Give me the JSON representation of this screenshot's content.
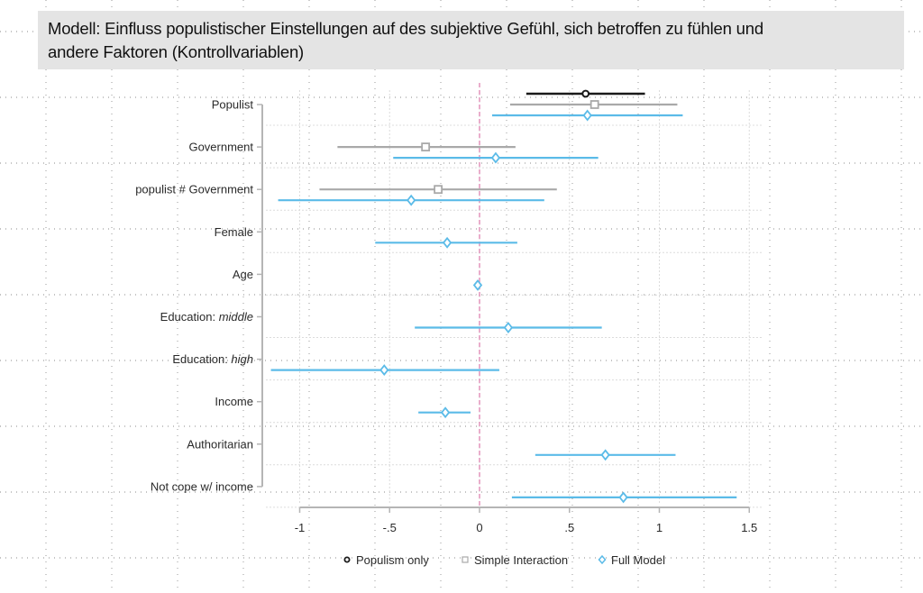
{
  "title": {
    "line1": "Modell: Einfluss populistischer Einstellungen auf des subjektive Gefühl, sich betroffen zu fühlen und",
    "line2": "andere Faktoren (Kontrollvariablen)"
  },
  "colors": {
    "populism_only": "#1a1a1a",
    "simple_interaction": "#a9a9a9",
    "full_model": "#5bbbe8",
    "zero_line": "#e59ac0",
    "axis": "#b5b5b5",
    "title_bg": "#e4e4e4"
  },
  "chart_data": {
    "type": "scatter",
    "subtype": "coefficient-plot",
    "title": "",
    "xlabel": "",
    "ylabel": "",
    "xlim": [
      -1.1,
      1.5
    ],
    "xticks": [
      -1,
      -0.5,
      0,
      0.5,
      1,
      1.5
    ],
    "xtick_labels": [
      "-1",
      "-.5",
      "0",
      ".5",
      "1",
      "1.5"
    ],
    "reference_line": 0,
    "grid": true,
    "legend_position": "bottom",
    "categories": [
      {
        "label": "Populist",
        "italic_part": ""
      },
      {
        "label": "Government",
        "italic_part": ""
      },
      {
        "label": "populist # Government",
        "italic_part": ""
      },
      {
        "label": "Female",
        "italic_part": ""
      },
      {
        "label": "Age",
        "italic_part": ""
      },
      {
        "label": "Education: ",
        "italic_part": "middle"
      },
      {
        "label": "Education: ",
        "italic_part": "high"
      },
      {
        "label": "Income",
        "italic_part": ""
      },
      {
        "label": "Authoritarian",
        "italic_part": ""
      },
      {
        "label": "Not cope w/ income",
        "italic_part": ""
      }
    ],
    "series": [
      {
        "name": "Populism only",
        "marker": "circle",
        "color_key": "populism_only",
        "points": [
          {
            "category": "Populist",
            "estimate": 0.59,
            "ci_low": 0.26,
            "ci_high": 0.92
          }
        ]
      },
      {
        "name": "Simple Interaction",
        "marker": "square",
        "color_key": "simple_interaction",
        "points": [
          {
            "category": "Populist",
            "estimate": 0.64,
            "ci_low": 0.17,
            "ci_high": 1.1
          },
          {
            "category": "Government",
            "estimate": -0.3,
            "ci_low": -0.79,
            "ci_high": 0.2
          },
          {
            "category": "populist # Government",
            "estimate": -0.23,
            "ci_low": -0.89,
            "ci_high": 0.43
          }
        ]
      },
      {
        "name": "Full Model",
        "marker": "diamond",
        "color_key": "full_model",
        "points": [
          {
            "category": "Populist",
            "estimate": 0.6,
            "ci_low": 0.07,
            "ci_high": 1.13
          },
          {
            "category": "Government",
            "estimate": 0.09,
            "ci_low": -0.48,
            "ci_high": 0.66
          },
          {
            "category": "populist # Government",
            "estimate": -0.38,
            "ci_low": -1.12,
            "ci_high": 0.36
          },
          {
            "category": "Female",
            "estimate": -0.18,
            "ci_low": -0.58,
            "ci_high": 0.21
          },
          {
            "category": "Age",
            "estimate": -0.01,
            "ci_low": -0.02,
            "ci_high": 0.0
          },
          {
            "category": "Education: middle",
            "estimate": 0.16,
            "ci_low": -0.36,
            "ci_high": 0.68
          },
          {
            "category": "Education: high",
            "estimate": -0.53,
            "ci_low": -1.16,
            "ci_high": 0.11
          },
          {
            "category": "Income",
            "estimate": -0.19,
            "ci_low": -0.34,
            "ci_high": -0.05
          },
          {
            "category": "Authoritarian",
            "estimate": 0.7,
            "ci_low": 0.31,
            "ci_high": 1.09
          },
          {
            "category": "Not cope w/ income",
            "estimate": 0.8,
            "ci_low": 0.18,
            "ci_high": 1.43
          }
        ]
      }
    ],
    "legend": [
      "Populism only",
      "Simple Interaction",
      "Full Model"
    ]
  }
}
